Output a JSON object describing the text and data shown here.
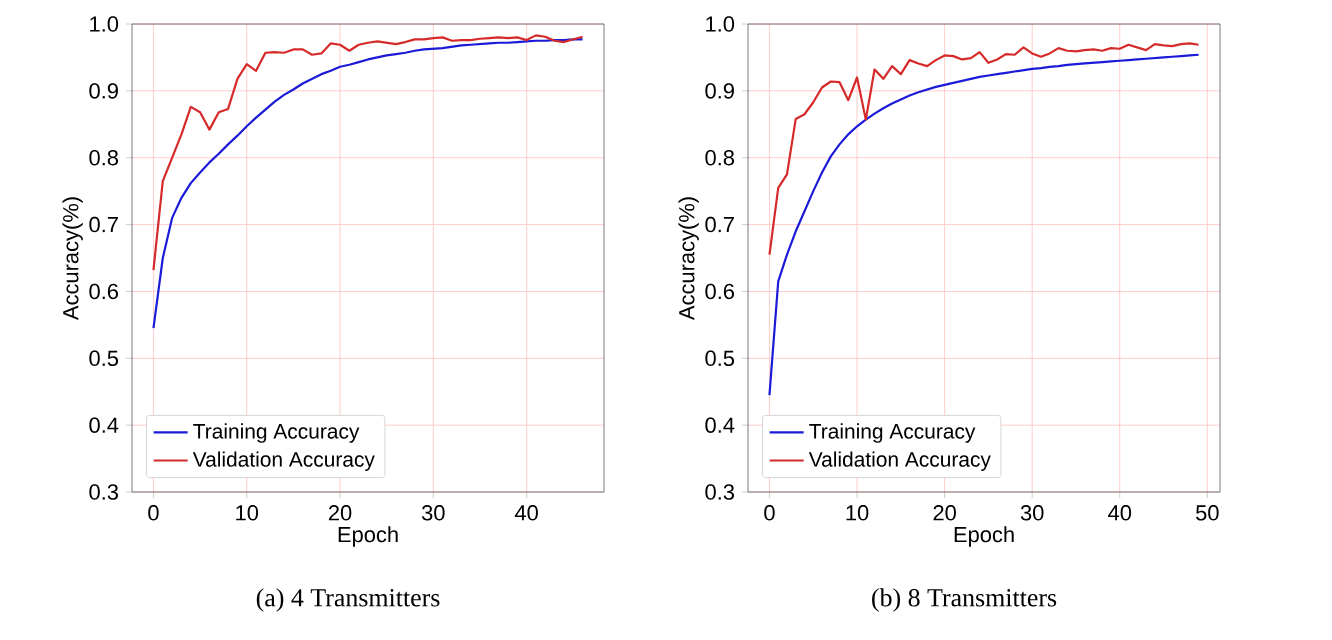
{
  "chart_data": [
    {
      "type": "line",
      "xlabel": "Epoch",
      "ylabel": "Accuracy(%)",
      "annotations": [
        "(a)  4 Transmitters"
      ],
      "xlim": [
        -2.3,
        48.3
      ],
      "ylim": [
        0.3,
        1.0
      ],
      "xticks": [
        0,
        10,
        20,
        30,
        40
      ],
      "yticks": [
        {
          "value": 0.3,
          "label": "0.3"
        },
        {
          "value": 0.4,
          "label": "0.4"
        },
        {
          "value": 0.5,
          "label": "0.5"
        },
        {
          "value": 0.6,
          "label": "0.6"
        },
        {
          "value": 0.7,
          "label": "0.7"
        },
        {
          "value": 0.8,
          "label": "0.8"
        },
        {
          "value": 0.9,
          "label": "0.9"
        },
        {
          "value": 1.0,
          "label": "1.0"
        }
      ],
      "grid": true,
      "legend": "bottom left",
      "x": [
        0,
        1,
        2,
        3,
        4,
        5,
        6,
        7,
        8,
        9,
        10,
        11,
        12,
        13,
        14,
        15,
        16,
        17,
        18,
        19,
        20,
        21,
        22,
        23,
        24,
        25,
        26,
        27,
        28,
        29,
        30,
        31,
        32,
        33,
        34,
        35,
        36,
        37,
        38,
        39,
        40,
        41,
        42,
        43,
        44,
        45,
        46
      ],
      "series": [
        {
          "name": "Training Accuracy",
          "color": "#1a1ad8",
          "values": [
            0.545,
            0.65,
            0.71,
            0.74,
            0.762,
            0.778,
            0.793,
            0.806,
            0.82,
            0.833,
            0.847,
            0.86,
            0.872,
            0.884,
            0.894,
            0.902,
            0.911,
            0.918,
            0.925,
            0.93,
            0.936,
            0.939,
            0.943,
            0.947,
            0.95,
            0.953,
            0.955,
            0.957,
            0.96,
            0.962,
            0.963,
            0.964,
            0.966,
            0.968,
            0.969,
            0.97,
            0.971,
            0.972,
            0.972,
            0.973,
            0.974,
            0.975,
            0.975,
            0.976,
            0.976,
            0.977,
            0.977
          ]
        },
        {
          "name": "Validation Accuracy",
          "color": "#d62a2a",
          "values": [
            0.632,
            0.765,
            0.8,
            0.835,
            0.876,
            0.868,
            0.842,
            0.868,
            0.873,
            0.918,
            0.94,
            0.93,
            0.957,
            0.958,
            0.957,
            0.962,
            0.962,
            0.954,
            0.956,
            0.971,
            0.969,
            0.96,
            0.969,
            0.972,
            0.974,
            0.972,
            0.97,
            0.973,
            0.977,
            0.977,
            0.979,
            0.98,
            0.975,
            0.976,
            0.976,
            0.978,
            0.979,
            0.98,
            0.979,
            0.98,
            0.976,
            0.983,
            0.981,
            0.975,
            0.973,
            0.977,
            0.981
          ]
        }
      ]
    },
    {
      "type": "line",
      "xlabel": "Epoch",
      "ylabel": "Accuracy(%)",
      "annotations": [
        "(b)  8 Transmitters"
      ],
      "xlim": [
        -2.45,
        51.45
      ],
      "ylim": [
        0.3,
        1.0
      ],
      "xticks": [
        0,
        10,
        20,
        30,
        40,
        50
      ],
      "yticks": [
        {
          "value": 0.3,
          "label": "0.3"
        },
        {
          "value": 0.4,
          "label": "0.4"
        },
        {
          "value": 0.5,
          "label": "0.5"
        },
        {
          "value": 0.6,
          "label": "0.6"
        },
        {
          "value": 0.7,
          "label": "0.7"
        },
        {
          "value": 0.8,
          "label": "0.8"
        },
        {
          "value": 0.9,
          "label": "0.9"
        },
        {
          "value": 1.0,
          "label": "1.0"
        }
      ],
      "grid": true,
      "legend": "bottom left",
      "x": [
        0,
        1,
        2,
        3,
        4,
        5,
        6,
        7,
        8,
        9,
        10,
        11,
        12,
        13,
        14,
        15,
        16,
        17,
        18,
        19,
        20,
        21,
        22,
        23,
        24,
        25,
        26,
        27,
        28,
        29,
        30,
        31,
        32,
        33,
        34,
        35,
        36,
        37,
        38,
        39,
        40,
        41,
        42,
        43,
        44,
        45,
        46,
        47,
        48,
        49
      ],
      "series": [
        {
          "name": "Training Accuracy",
          "color": "#1a1ad8",
          "values": [
            0.445,
            0.615,
            0.655,
            0.69,
            0.72,
            0.75,
            0.778,
            0.802,
            0.82,
            0.835,
            0.847,
            0.857,
            0.866,
            0.874,
            0.881,
            0.887,
            0.893,
            0.898,
            0.902,
            0.906,
            0.909,
            0.912,
            0.915,
            0.918,
            0.921,
            0.923,
            0.925,
            0.927,
            0.929,
            0.931,
            0.933,
            0.934,
            0.936,
            0.937,
            0.939,
            0.94,
            0.941,
            0.942,
            0.943,
            0.944,
            0.945,
            0.946,
            0.947,
            0.948,
            0.949,
            0.95,
            0.951,
            0.952,
            0.953,
            0.954
          ]
        },
        {
          "name": "Validation Accuracy",
          "color": "#d62a2a",
          "values": [
            0.655,
            0.755,
            0.775,
            0.858,
            0.865,
            0.883,
            0.905,
            0.914,
            0.913,
            0.886,
            0.92,
            0.857,
            0.932,
            0.918,
            0.937,
            0.925,
            0.946,
            0.941,
            0.937,
            0.946,
            0.953,
            0.952,
            0.947,
            0.949,
            0.958,
            0.942,
            0.947,
            0.955,
            0.954,
            0.965,
            0.956,
            0.951,
            0.956,
            0.964,
            0.96,
            0.959,
            0.961,
            0.962,
            0.96,
            0.964,
            0.963,
            0.969,
            0.965,
            0.961,
            0.97,
            0.968,
            0.967,
            0.97,
            0.971,
            0.969
          ]
        }
      ]
    }
  ]
}
